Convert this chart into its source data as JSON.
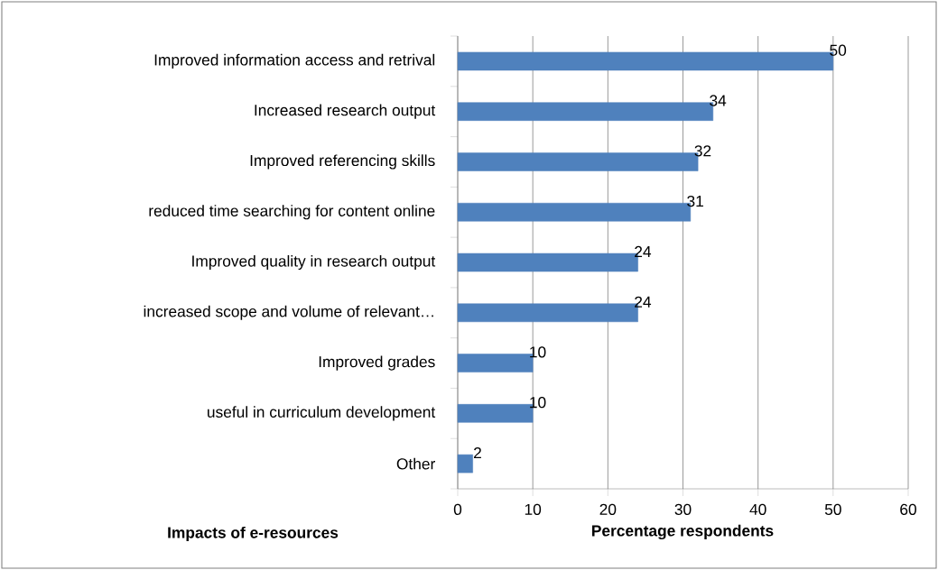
{
  "chart_data": {
    "type": "bar",
    "orientation": "horizontal",
    "categories": [
      "Improved information access and retrival",
      "Increased research output",
      "Improved referencing skills",
      "reduced time searching for content online",
      "Improved quality in research output",
      "increased scope and volume of relevant…",
      "Improved grades",
      "useful in curriculum development",
      "Other"
    ],
    "values": [
      50,
      34,
      32,
      31,
      24,
      24,
      10,
      10,
      2
    ],
    "color": "#4f81bd",
    "data_labels": true,
    "grid": "x",
    "xlim": [
      0,
      60
    ],
    "xticks": [
      0,
      10,
      20,
      30,
      40,
      50,
      60
    ],
    "xlabel": "Percentage respondents",
    "ylabel": "Impacts of e-resources"
  }
}
